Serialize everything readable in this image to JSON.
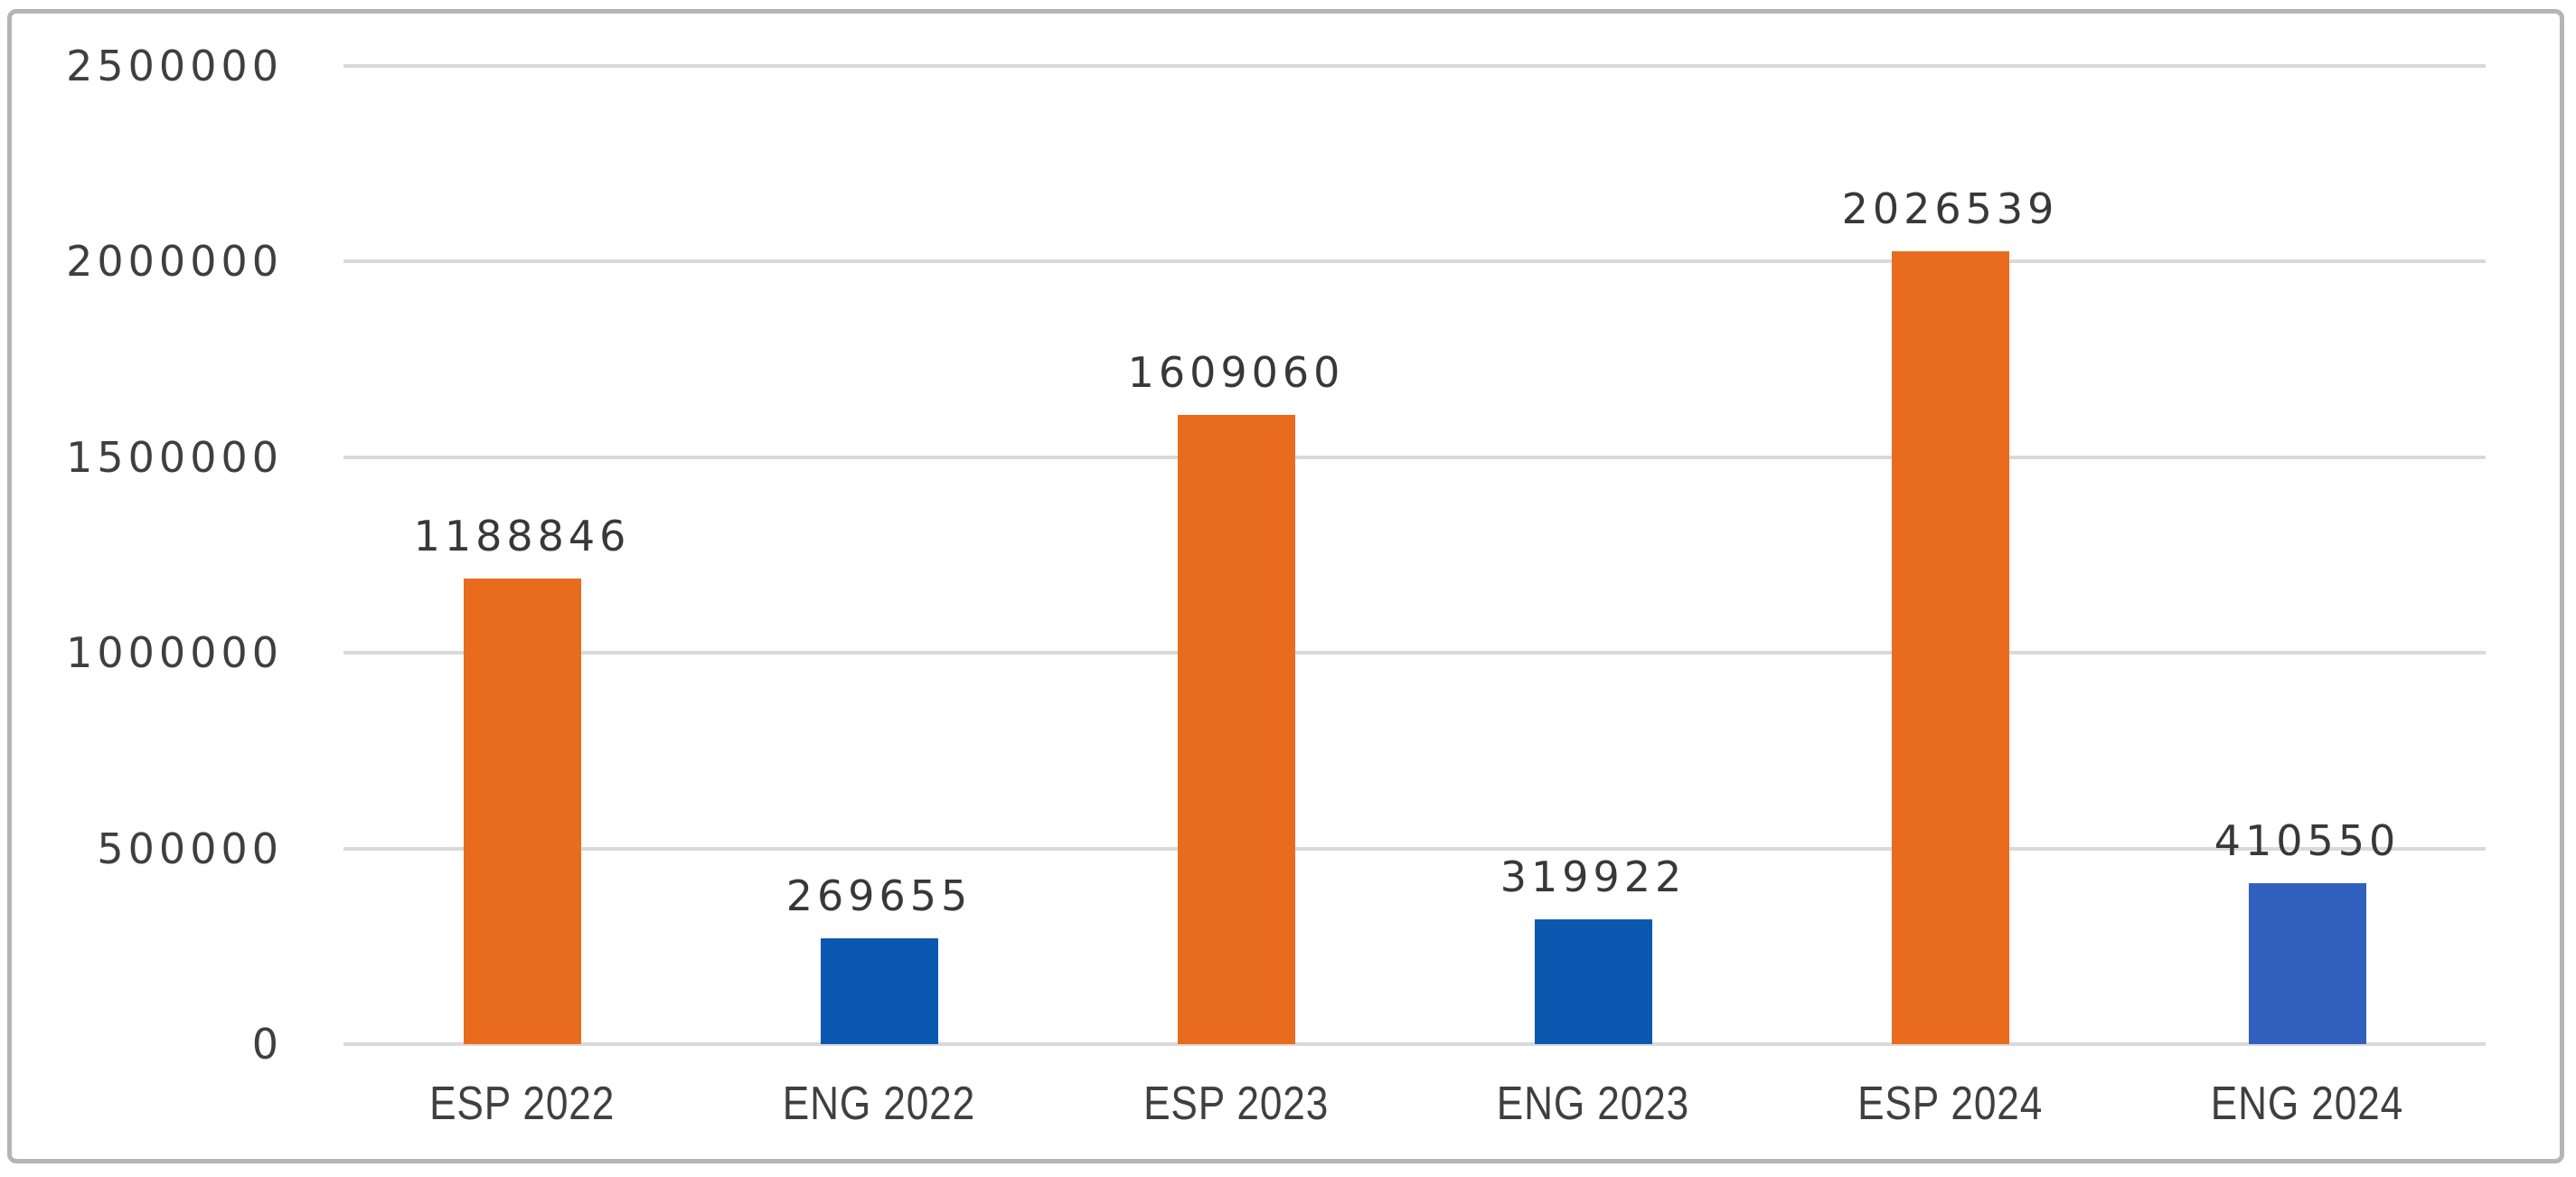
{
  "chart_data": {
    "type": "bar",
    "title": "",
    "categories": [
      "ESP 2022",
      "ENG 2022",
      "ESP 2023",
      "ENG 2023",
      "ESP 2024",
      "ENG 2024"
    ],
    "values": [
      1188846,
      269655,
      1609060,
      319922,
      2026539,
      410550
    ],
    "xlabel": "",
    "ylabel": "",
    "ylim": [
      0,
      2500000
    ],
    "ytick_interval": 500000,
    "ytick_labels": [
      "2500000",
      "2000000",
      "1500000",
      "1000000",
      "500000",
      "0"
    ],
    "grid": "horizontal-only",
    "legend_position": "none",
    "data_labels_shown": true,
    "points": [
      {
        "category": "ESP 2022",
        "value": 1188846,
        "value_label": "1188846",
        "color": "#e96b1d"
      },
      {
        "category": "ENG 2022",
        "value": 269655,
        "value_label": "269655",
        "color": "#0b58b0"
      },
      {
        "category": "ESP 2023",
        "value": 1609060,
        "value_label": "1609060",
        "color": "#e96b1d"
      },
      {
        "category": "ENG 2023",
        "value": 319922,
        "value_label": "319922",
        "color": "#0b58b0"
      },
      {
        "category": "ESP 2024",
        "value": 2026539,
        "value_label": "2026539",
        "color": "#e96b1d"
      },
      {
        "category": "ENG 2024",
        "value": 410550,
        "value_label": "410550",
        "color": "#3260be"
      }
    ],
    "colors": {
      "esp_bar": "#e96b1d",
      "eng_bar": "#0b58b0",
      "eng_bar_2024": "#3260be",
      "gridline": "#d9d9d9",
      "frame_border": "#b5b5b5",
      "text": "#3f3f3f",
      "background": "#ffffff"
    }
  }
}
